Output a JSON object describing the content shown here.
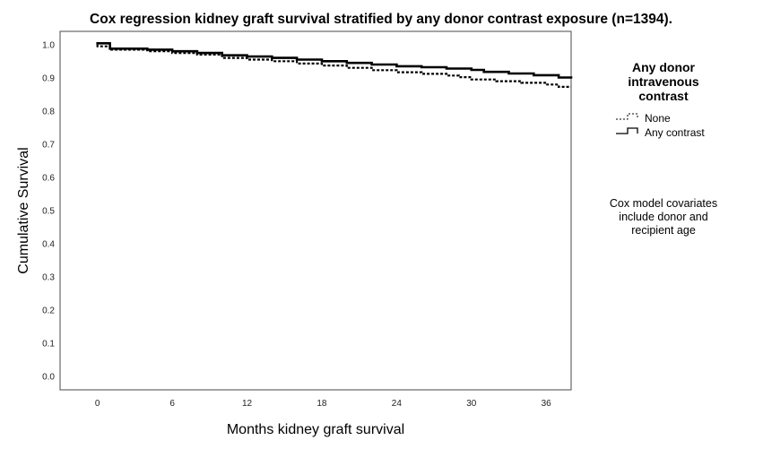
{
  "chart_data": {
    "type": "line",
    "title": "Cox regression kidney graft survival stratified by any donor contrast exposure (n=1394).",
    "xlabel": "Months kidney graft survival",
    "ylabel": "Cumulative Survival",
    "xlim": [
      -3,
      38
    ],
    "ylim": [
      -0.04,
      1.04
    ],
    "xticks": [
      "0",
      "6",
      "12",
      "18",
      "24",
      "30",
      "36"
    ],
    "yticks": [
      "0.0",
      "0.1",
      "0.2",
      "0.3",
      "0.4",
      "0.5",
      "0.6",
      "0.7",
      "0.8",
      "0.9",
      "1.0"
    ],
    "grid": false,
    "legend": {
      "title": "Any donor intravenous contrast",
      "title_lines": [
        "Any donor",
        "intravenous",
        "contrast"
      ],
      "placement": "right",
      "entries": [
        "None",
        "Any contrast"
      ]
    },
    "annotation": {
      "lines": [
        "Cox model covariates",
        "include donor and",
        "recipient age"
      ]
    },
    "series": [
      {
        "name": "None",
        "style": "dashed",
        "x": [
          0,
          1,
          4,
          6,
          8,
          10,
          12,
          14,
          16,
          18,
          20,
          22,
          24,
          26,
          28,
          29,
          30,
          32,
          34,
          36,
          37,
          38
        ],
        "y": [
          0.995,
          0.985,
          0.98,
          0.975,
          0.97,
          0.96,
          0.955,
          0.95,
          0.943,
          0.937,
          0.93,
          0.923,
          0.917,
          0.912,
          0.907,
          0.902,
          0.895,
          0.89,
          0.885,
          0.88,
          0.873,
          0.873
        ]
      },
      {
        "name": "Any contrast",
        "style": "solid",
        "x": [
          0,
          1,
          4,
          6,
          8,
          10,
          12,
          14,
          16,
          18,
          20,
          22,
          24,
          26,
          28,
          30,
          31,
          33,
          35,
          37,
          38
        ],
        "y": [
          1.004,
          0.988,
          0.985,
          0.98,
          0.975,
          0.968,
          0.964,
          0.96,
          0.955,
          0.95,
          0.945,
          0.94,
          0.935,
          0.932,
          0.928,
          0.924,
          0.918,
          0.913,
          0.908,
          0.901,
          0.898
        ]
      }
    ]
  }
}
